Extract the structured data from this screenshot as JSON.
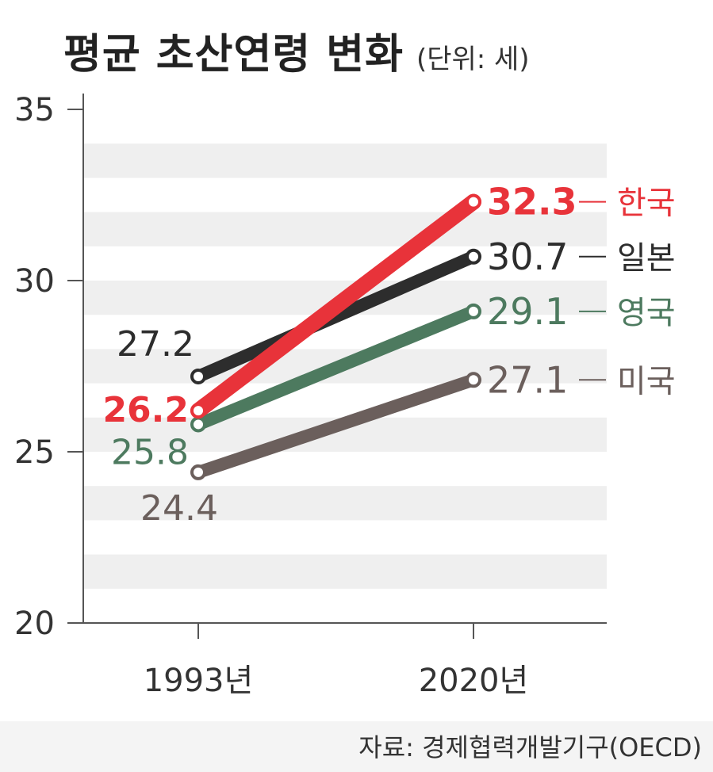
{
  "title": "평균 초산연령 변화",
  "unit": "(단위: 세)",
  "source": "자료: 경제협력개발기구(OECD)",
  "colors": {
    "band": "#efefef",
    "axis": "#555555",
    "tick_label": "#333333",
    "한국": "#e8333a",
    "일본": "#2d2d2d",
    "영국": "#4d7a5f",
    "미국": "#6b5f5c"
  },
  "chart_data": {
    "type": "line",
    "x": [
      "1993년",
      "2020년"
    ],
    "ylim": [
      20,
      35
    ],
    "yticks": [
      "20",
      "25",
      "30",
      "35"
    ],
    "grid": "horizontal bands",
    "series": [
      {
        "name": "한국",
        "values": [
          26.2,
          32.3
        ],
        "labels": [
          "26.2",
          "32.3"
        ]
      },
      {
        "name": "일본",
        "values": [
          27.2,
          30.7
        ],
        "labels": [
          "27.2",
          "30.7"
        ]
      },
      {
        "name": "영국",
        "values": [
          25.8,
          29.1
        ],
        "labels": [
          "25.8",
          "29.1"
        ]
      },
      {
        "name": "미국",
        "values": [
          24.4,
          27.1
        ],
        "labels": [
          "24.4",
          "27.1"
        ]
      }
    ]
  }
}
